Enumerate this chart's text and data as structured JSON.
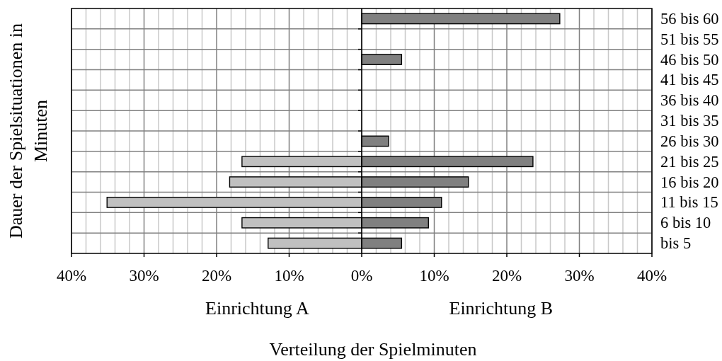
{
  "chart_data": {
    "type": "bar",
    "orientation": "horizontal",
    "stacked": true,
    "xlabel": "Verteilung der Spielminuten",
    "ylabel": "Dauer der Spielsituationen in Minuten",
    "annotations": [
      "Einrichtung A",
      "Einrichtung B"
    ],
    "categories": [
      "56 bis 60",
      "51 bis 55",
      "46 bis 50",
      "41 bis 45",
      "36 bis 40",
      "31 bis 35",
      "26 bis 30",
      "21 bis 25",
      "16 bis 20",
      "11 bis 15",
      "6 bis 10",
      "bis 5"
    ],
    "series": [
      {
        "color": "#c0c0c0",
        "values": [
          null,
          null,
          null,
          null,
          null,
          null,
          null,
          -16.5,
          -18.2,
          -35.1,
          -16.5,
          -12.9
        ]
      },
      {
        "color": "#808080",
        "values": [
          27.3,
          null,
          5.5,
          null,
          null,
          null,
          3.7,
          23.6,
          14.7,
          11.0,
          9.2,
          5.5
        ]
      }
    ],
    "xlim": [
      -40,
      40
    ],
    "xticks": [
      {
        "value": -40,
        "label": "40%"
      },
      {
        "value": -38,
        "label": null
      },
      {
        "value": -36,
        "label": null
      },
      {
        "value": -34,
        "label": null
      },
      {
        "value": -32,
        "label": null
      },
      {
        "value": -30,
        "label": "30%"
      },
      {
        "value": -28,
        "label": null
      },
      {
        "value": -26,
        "label": null
      },
      {
        "value": -24,
        "label": null
      },
      {
        "value": -22,
        "label": null
      },
      {
        "value": -20,
        "label": "20%"
      },
      {
        "value": -18,
        "label": null
      },
      {
        "value": -16,
        "label": null
      },
      {
        "value": -14,
        "label": null
      },
      {
        "value": -12,
        "label": null
      },
      {
        "value": -10,
        "label": "10%"
      },
      {
        "value": -8,
        "label": null
      },
      {
        "value": -6,
        "label": null
      },
      {
        "value": -4,
        "label": null
      },
      {
        "value": -2,
        "label": null
      },
      {
        "value": 0,
        "label": "0%"
      },
      {
        "value": 2,
        "label": null
      },
      {
        "value": 4,
        "label": null
      },
      {
        "value": 6,
        "label": null
      },
      {
        "value": 8,
        "label": null
      },
      {
        "value": 10,
        "label": "10%"
      },
      {
        "value": 12,
        "label": null
      },
      {
        "value": 14,
        "label": null
      },
      {
        "value": 16,
        "label": null
      },
      {
        "value": 18,
        "label": null
      },
      {
        "value": 20,
        "label": "20%"
      },
      {
        "value": 22,
        "label": null
      },
      {
        "value": 24,
        "label": null
      },
      {
        "value": 26,
        "label": null
      },
      {
        "value": 28,
        "label": null
      },
      {
        "value": 30,
        "label": "30%"
      },
      {
        "value": 32,
        "label": null
      },
      {
        "value": 34,
        "label": null
      },
      {
        "value": 36,
        "label": null
      },
      {
        "value": 38,
        "label": null
      },
      {
        "value": 40,
        "label": "40%"
      }
    ],
    "grid": true
  }
}
